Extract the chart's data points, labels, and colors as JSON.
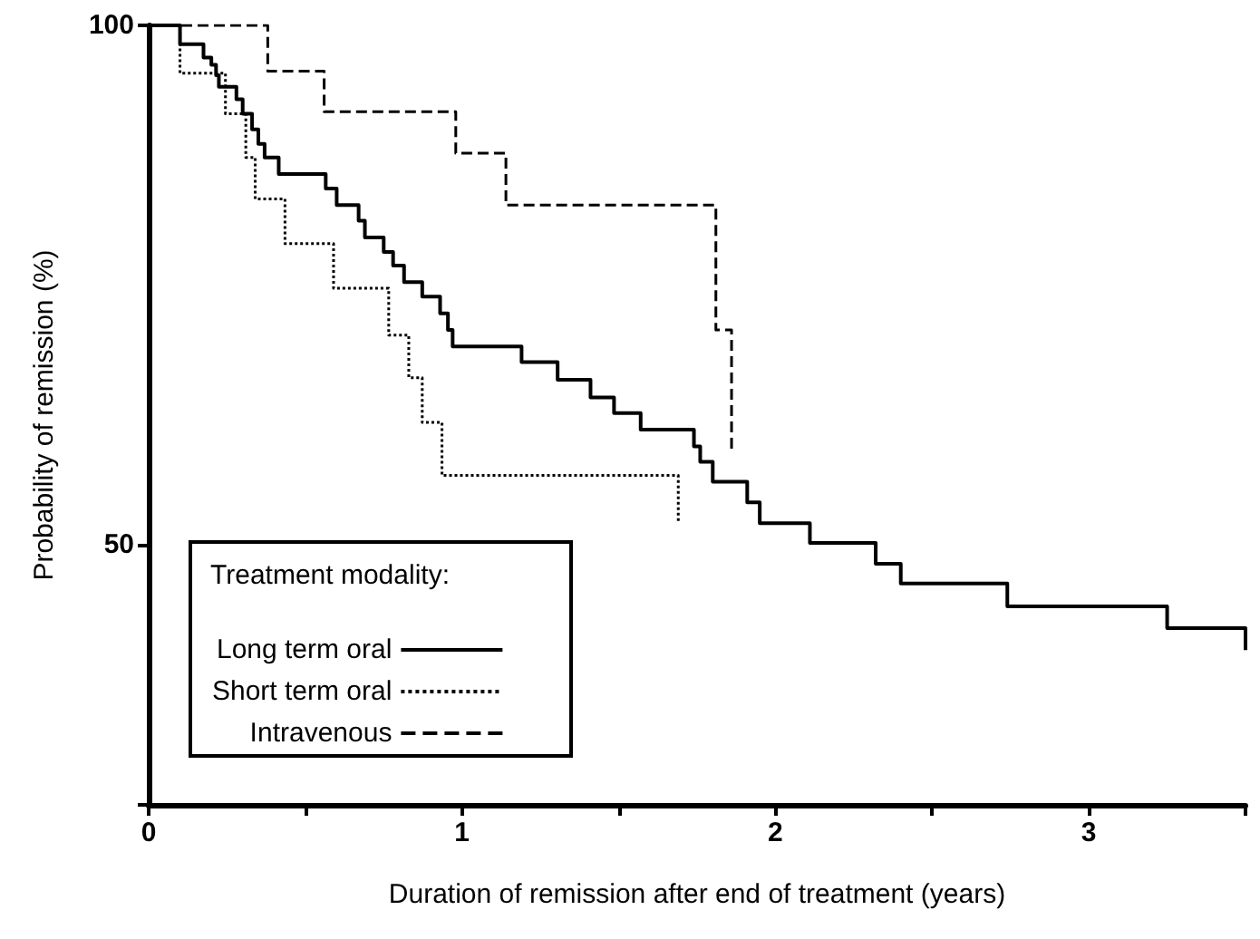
{
  "chart_data": {
    "type": "step",
    "xlabel": "Duration of remission after end of treatment (years)",
    "ylabel": "Probability of remission (%)",
    "legend_title": "Treatment modality:",
    "legend": "bottom left",
    "grid": false,
    "marker": "none",
    "xlim": [
      0,
      3.5
    ],
    "xticks": [
      0,
      {
        "value": 0.5,
        "label": null
      },
      1,
      {
        "value": 1.5,
        "label": null
      },
      2,
      {
        "value": 2.5,
        "label": null
      },
      3,
      {
        "value": 3.5,
        "label": null
      }
    ],
    "ylim": [
      25,
      100
    ],
    "yticks": [
      {
        "value": 25,
        "label": null
      },
      50,
      100
    ],
    "series": [
      {
        "name": "Long term oral",
        "color": "#000000",
        "line_style": "solid",
        "x": [
          0,
          0.1,
          0.175,
          0.2,
          0.215,
          0.224,
          0.28,
          0.3,
          0.33,
          0.35,
          0.37,
          0.415,
          0.565,
          0.6,
          0.67,
          0.69,
          0.75,
          0.78,
          0.815,
          0.873,
          0.93,
          0.955,
          0.97,
          1.19,
          1.305,
          1.41,
          1.485,
          1.57,
          1.74,
          1.76,
          1.8,
          1.91,
          1.95,
          2.11,
          2.32,
          2.4,
          2.74,
          3.25,
          3.5
        ],
        "values": [
          100,
          98.2,
          96.9,
          96.2,
          95.2,
          94.1,
          92.9,
          91.5,
          90,
          88.6,
          87.3,
          85.7,
          84.3,
          82.7,
          81.2,
          79.6,
          78.2,
          76.9,
          75.3,
          73.9,
          72.3,
          70.7,
          69.1,
          67.6,
          65.9,
          64.2,
          62.7,
          61.1,
          59.5,
          58,
          56.1,
          54.1,
          52.1,
          50.2,
          48.2,
          46.3,
          44.1,
          42,
          39.9
        ]
      },
      {
        "name": "Short term oral",
        "color": "#000000",
        "line_style": "dotted",
        "x": [
          0,
          0.1,
          0.245,
          0.31,
          0.34,
          0.435,
          0.59,
          0.766,
          0.83,
          0.873,
          0.936,
          1.69
        ],
        "values": [
          100,
          95.4,
          91.5,
          87.3,
          83.3,
          79,
          74.7,
          70.2,
          66.1,
          61.8,
          56.7,
          52.2
        ]
      },
      {
        "name": "Intravenous",
        "color": "#000000",
        "line_style": "dashed",
        "x": [
          0,
          0.38,
          0.56,
          0.98,
          1.14,
          1.81,
          1.86
        ],
        "values": [
          100,
          95.6,
          91.7,
          87.7,
          82.7,
          70.7,
          59.2
        ]
      }
    ]
  }
}
